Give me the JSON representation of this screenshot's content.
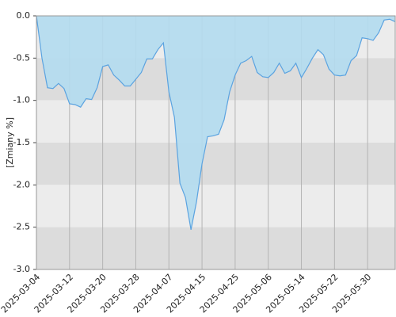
{
  "chart_data": {
    "type": "area",
    "y_label": "[Zmiany %]",
    "categories": [
      "2025-03-04",
      null,
      null,
      null,
      null,
      null,
      "2025-03-12",
      null,
      null,
      null,
      null,
      null,
      "2025-03-20",
      null,
      null,
      null,
      null,
      null,
      "2025-03-28",
      null,
      null,
      null,
      null,
      null,
      "2025-04-07",
      null,
      null,
      null,
      null,
      null,
      "2025-04-15",
      null,
      null,
      null,
      null,
      null,
      "2025-04-25",
      null,
      null,
      null,
      null,
      null,
      "2025-05-06",
      null,
      null,
      null,
      null,
      null,
      "2025-05-14",
      null,
      null,
      null,
      null,
      null,
      "2025-05-22",
      null,
      null,
      null,
      null,
      null,
      "2025-05-30",
      null,
      null,
      null,
      null,
      null
    ],
    "values": [
      0.0,
      -0.5,
      -0.85,
      -0.86,
      -0.8,
      -0.86,
      -1.04,
      -1.05,
      -1.08,
      -0.98,
      -0.99,
      -0.85,
      -0.6,
      -0.58,
      -0.7,
      -0.76,
      -0.83,
      -0.83,
      -0.75,
      -0.67,
      -0.51,
      -0.51,
      -0.4,
      -0.32,
      -0.9,
      -1.2,
      -1.98,
      -2.15,
      -2.53,
      -2.2,
      -1.75,
      -1.43,
      -1.42,
      -1.4,
      -1.23,
      -0.9,
      -0.7,
      -0.56,
      -0.53,
      -0.48,
      -0.67,
      -0.72,
      -0.73,
      -0.67,
      -0.56,
      -0.68,
      -0.65,
      -0.56,
      -0.73,
      -0.62,
      -0.5,
      -0.4,
      -0.46,
      -0.63,
      -0.7,
      -0.71,
      -0.7,
      -0.53,
      -0.47,
      -0.26,
      -0.27,
      -0.29,
      -0.2,
      -0.05,
      -0.04,
      -0.07
    ],
    "color": "#5ba3e0",
    "fill": "#b3dcef",
    "ylim": [
      -3,
      0
    ],
    "yticks": [
      {
        "value": 0,
        "label": "0.0"
      },
      -0.5,
      {
        "value": -1,
        "label": "-1.0"
      },
      -1.5,
      {
        "value": -2,
        "label": "-2.0"
      },
      -2.5,
      {
        "value": -3,
        "label": "-3.0"
      }
    ],
    "grid": true
  }
}
